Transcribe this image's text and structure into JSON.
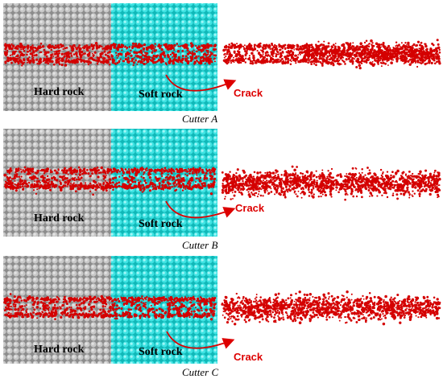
{
  "colors": {
    "hard_rock": "#9a9a9a",
    "soft_rock": "#22d4d4",
    "crack": "#d40000",
    "background": "#ffffff"
  },
  "panels": [
    {
      "caption": "Cutter A",
      "hard_label": "Hard rock",
      "soft_label": "Soft rock",
      "crack_label": "Crack"
    },
    {
      "caption": "Cutter B",
      "hard_label": "Hard rock",
      "soft_label": "Soft rock",
      "crack_label": "Crack"
    },
    {
      "caption": "Cutter C",
      "hard_label": "Hard rock",
      "soft_label": "Soft rock",
      "crack_label": "Crack"
    }
  ]
}
